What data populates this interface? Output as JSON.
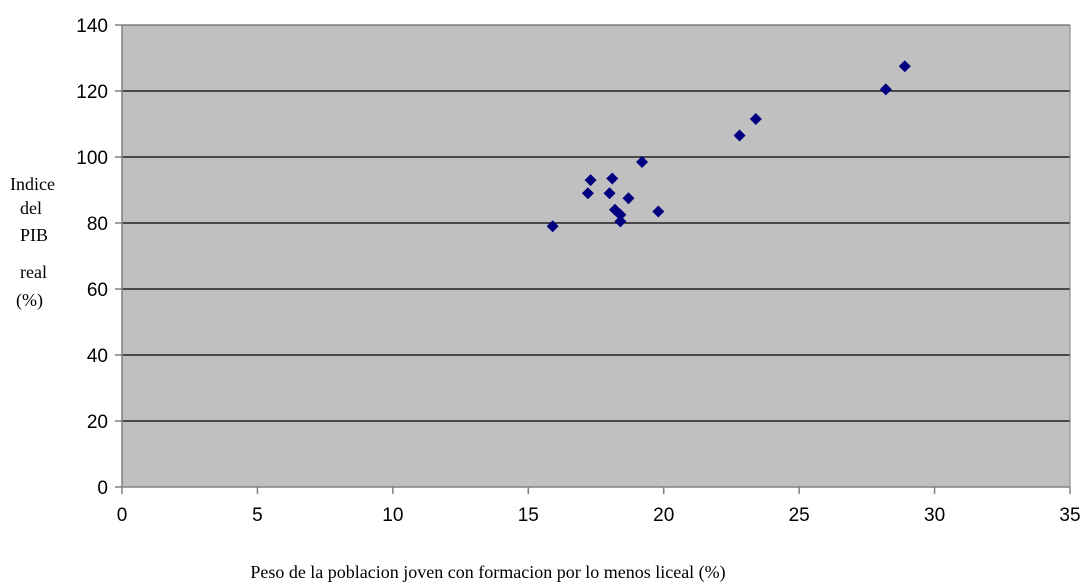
{
  "chart_data": {
    "type": "scatter",
    "title": "",
    "xlabel": "Peso de la poblacion joven con formacion por lo menos liceal (%)",
    "ylabel_lines": [
      "Indice",
      "del",
      "PIB",
      "real",
      "(%)"
    ],
    "xlim": [
      0,
      35
    ],
    "ylim": [
      0,
      140
    ],
    "xticks": [
      0,
      5,
      10,
      15,
      20,
      25,
      30,
      35
    ],
    "yticks": [
      0,
      20,
      40,
      60,
      80,
      100,
      120,
      140
    ],
    "grid": "horizontal",
    "plot_background": "#c0c0c0",
    "marker": "diamond",
    "marker_color": "#000080",
    "series": [
      {
        "points": [
          {
            "x": 15.9,
            "y": 79
          },
          {
            "x": 17.2,
            "y": 89
          },
          {
            "x": 17.3,
            "y": 93
          },
          {
            "x": 18.0,
            "y": 89
          },
          {
            "x": 18.1,
            "y": 93.5
          },
          {
            "x": 18.2,
            "y": 84
          },
          {
            "x": 18.4,
            "y": 80.5
          },
          {
            "x": 18.4,
            "y": 82.5
          },
          {
            "x": 18.7,
            "y": 87.5
          },
          {
            "x": 19.2,
            "y": 98.5
          },
          {
            "x": 19.8,
            "y": 83.5
          },
          {
            "x": 22.8,
            "y": 106.5
          },
          {
            "x": 23.4,
            "y": 111.5
          },
          {
            "x": 28.2,
            "y": 120.5
          },
          {
            "x": 28.9,
            "y": 127.5
          }
        ]
      }
    ]
  }
}
